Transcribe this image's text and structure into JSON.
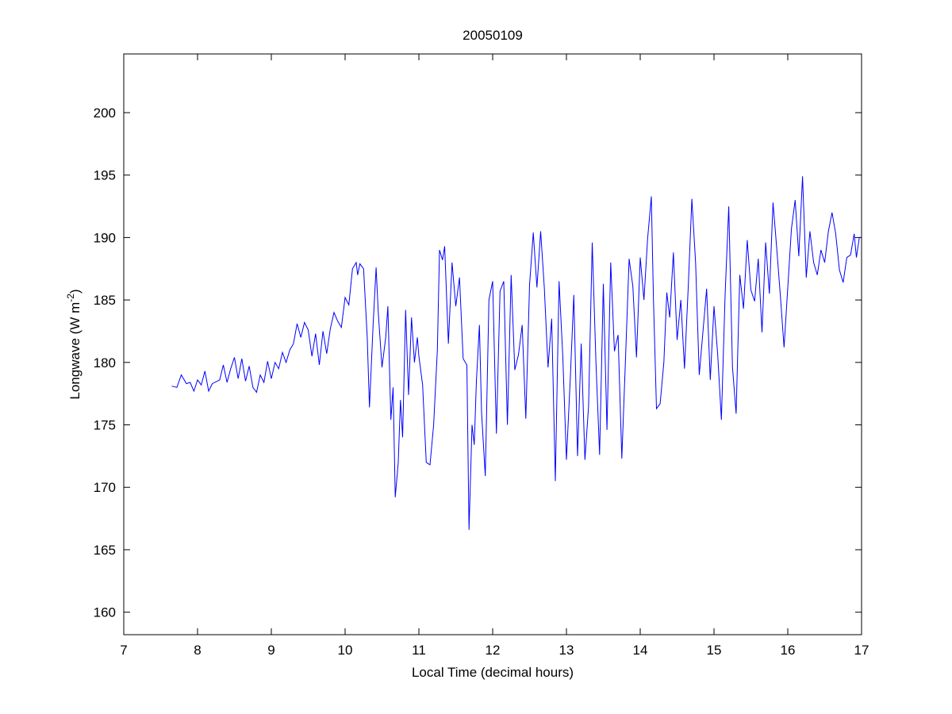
{
  "chart_data": {
    "type": "line",
    "title": "20050109",
    "xlabel": "Local Time (decimal hours)",
    "ylabel": {
      "main": "Longwave (W m",
      "sup": "-2",
      "end": ")"
    },
    "xlim": [
      7,
      17
    ],
    "ylim": [
      158.2,
      204.7
    ],
    "xticks": [
      7,
      8,
      9,
      10,
      11,
      12,
      13,
      14,
      15,
      16,
      17
    ],
    "yticks": [
      160,
      165,
      170,
      175,
      180,
      185,
      190,
      195,
      200
    ],
    "grid": false,
    "legend": "none",
    "series": [
      {
        "name": "Longwave",
        "color": "#0000ff",
        "x": [
          7.65,
          7.72,
          7.78,
          7.85,
          7.9,
          7.95,
          8.0,
          8.05,
          8.1,
          8.15,
          8.2,
          8.3,
          8.35,
          8.4,
          8.45,
          8.5,
          8.55,
          8.6,
          8.65,
          8.7,
          8.75,
          8.8,
          8.85,
          8.9,
          8.95,
          9.0,
          9.05,
          9.1,
          9.15,
          9.2,
          9.25,
          9.3,
          9.35,
          9.4,
          9.45,
          9.5,
          9.55,
          9.6,
          9.65,
          9.7,
          9.75,
          9.8,
          9.85,
          9.9,
          9.95,
          10.0,
          10.05,
          10.1,
          10.15,
          10.17,
          10.2,
          10.25,
          10.3,
          10.33,
          10.38,
          10.42,
          10.45,
          10.5,
          10.55,
          10.58,
          10.62,
          10.65,
          10.68,
          10.72,
          10.75,
          10.78,
          10.82,
          10.86,
          10.9,
          10.94,
          10.98,
          11.0,
          11.05,
          11.1,
          11.15,
          11.2,
          11.25,
          11.28,
          11.32,
          11.35,
          11.4,
          11.45,
          11.5,
          11.55,
          11.6,
          11.65,
          11.68,
          11.72,
          11.75,
          11.78,
          11.82,
          11.85,
          11.9,
          11.95,
          12.0,
          12.05,
          12.1,
          12.15,
          12.2,
          12.25,
          12.3,
          12.35,
          12.4,
          12.45,
          12.5,
          12.55,
          12.6,
          12.65,
          12.7,
          12.75,
          12.8,
          12.85,
          12.9,
          12.95,
          13.0,
          13.05,
          13.1,
          13.15,
          13.2,
          13.25,
          13.3,
          13.35,
          13.4,
          13.45,
          13.5,
          13.55,
          13.6,
          13.65,
          13.7,
          13.75,
          13.8,
          13.85,
          13.9,
          13.95,
          14.0,
          14.05,
          14.1,
          14.15,
          14.18,
          14.22,
          14.27,
          14.32,
          14.36,
          14.4,
          14.45,
          14.5,
          14.55,
          14.6,
          14.65,
          14.7,
          14.75,
          14.8,
          14.85,
          14.9,
          14.95,
          15.0,
          15.05,
          15.1,
          15.15,
          15.2,
          15.25,
          15.3,
          15.35,
          15.4,
          15.45,
          15.5,
          15.55,
          15.6,
          15.65,
          15.7,
          15.75,
          15.8,
          15.85,
          15.9,
          15.95,
          16.0,
          16.05,
          16.1,
          16.15,
          16.2,
          16.25,
          16.3,
          16.35,
          16.4,
          16.45,
          16.5,
          16.55,
          16.6,
          16.65,
          16.7,
          16.75,
          16.8,
          16.85,
          16.9,
          16.93,
          16.97,
          17.0
        ],
        "y": [
          178.1,
          178.0,
          179.0,
          178.3,
          178.4,
          177.7,
          178.6,
          178.2,
          179.3,
          177.7,
          178.3,
          178.6,
          179.8,
          178.4,
          179.5,
          180.4,
          178.7,
          180.3,
          178.5,
          179.7,
          178.0,
          177.6,
          179.0,
          178.4,
          180.1,
          178.7,
          180.0,
          179.5,
          180.8,
          180.0,
          181.0,
          181.5,
          183.1,
          182.0,
          183.2,
          182.6,
          180.5,
          182.3,
          179.8,
          182.5,
          180.7,
          182.7,
          184.0,
          183.3,
          182.8,
          185.2,
          184.6,
          187.5,
          188.0,
          187.0,
          187.9,
          187.5,
          182.0,
          176.4,
          183.0,
          187.6,
          184.0,
          179.6,
          182.0,
          184.5,
          175.4,
          178.0,
          169.2,
          172.0,
          177.0,
          174.0,
          184.2,
          177.4,
          183.6,
          180.0,
          182.0,
          180.5,
          178.2,
          172.0,
          171.8,
          175.0,
          181.0,
          189.0,
          188.2,
          189.3,
          181.5,
          188.0,
          184.5,
          186.8,
          180.3,
          179.8,
          166.6,
          175.0,
          173.4,
          178.5,
          183.0,
          176.0,
          170.9,
          185.0,
          186.5,
          174.3,
          185.7,
          186.5,
          175.0,
          187.0,
          179.4,
          180.6,
          183.0,
          175.5,
          186.2,
          190.4,
          186.0,
          190.5,
          186.0,
          179.6,
          183.5,
          170.5,
          186.5,
          180.5,
          172.2,
          178.5,
          185.4,
          172.5,
          181.5,
          172.2,
          176.5,
          189.6,
          180.0,
          172.6,
          186.3,
          174.6,
          188.0,
          180.9,
          182.2,
          172.3,
          180.2,
          188.3,
          186.1,
          180.4,
          188.4,
          185.0,
          189.9,
          193.3,
          185.0,
          176.3,
          176.7,
          180.0,
          185.6,
          183.6,
          188.8,
          181.8,
          185.0,
          179.5,
          186.0,
          193.1,
          188.0,
          179.0,
          182.4,
          185.9,
          178.6,
          184.5,
          180.6,
          175.4,
          185.4,
          192.5,
          179.6,
          175.9,
          187.0,
          184.3,
          189.8,
          185.8,
          184.9,
          188.3,
          182.4,
          189.6,
          185.5,
          192.8,
          189.2,
          185.3,
          181.2,
          186.0,
          190.7,
          193.0,
          188.5,
          194.9,
          186.8,
          190.5,
          188.0,
          187.0,
          189.0,
          188.0,
          190.5,
          192.0,
          190.3,
          187.4,
          186.4,
          188.4,
          188.6,
          190.3,
          188.4,
          190.0,
          190.0
        ]
      }
    ]
  }
}
